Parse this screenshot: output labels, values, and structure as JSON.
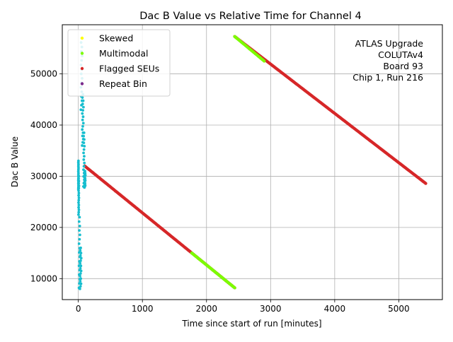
{
  "chart_data": {
    "type": "scatter",
    "title": "Dac B Value vs Relative Time for Channel 4",
    "xlabel": "Time since start of run [minutes]",
    "ylabel": "Dac B Value",
    "xlim": [
      -250,
      5680
    ],
    "ylim": [
      5900,
      59600
    ],
    "xticks": [
      0,
      1000,
      2000,
      3000,
      4000,
      5000
    ],
    "yticks": [
      10000,
      20000,
      30000,
      40000,
      50000
    ],
    "grid": true,
    "legend_position": "top-left",
    "annotation": [
      "ATLAS Upgrade",
      "COLUTAv4",
      "Board 93",
      "Chip 1, Run 216"
    ],
    "series": [
      {
        "name": "Skewed",
        "color": "#ffff00",
        "marker": "dot",
        "points": []
      },
      {
        "name": "Multimodal",
        "color": "#7cfc00",
        "marker": "dot",
        "segments": [
          {
            "x": [
              1770,
              2440
            ],
            "y": [
              15000,
              8200
            ]
          },
          {
            "x": [
              2440,
              2900
            ],
            "y": [
              57300,
              52500
            ]
          }
        ]
      },
      {
        "name": "Flagged SEUs",
        "color": "#d62728",
        "marker": "dot",
        "segments": [
          {
            "x": [
              100,
              2440
            ],
            "y": [
              32000,
              8200
            ]
          },
          {
            "x": [
              2440,
              5420
            ],
            "y": [
              57300,
              28600
            ]
          }
        ]
      },
      {
        "name": "Repeat Bin",
        "color": "#7b2a8c",
        "marker": "dot",
        "points": []
      },
      {
        "name": "",
        "color": "#17becf",
        "marker": "dot",
        "bursts": [
          {
            "x": [
              0,
              3
            ],
            "y": [
              27500,
              33000
            ]
          },
          {
            "x": [
              3,
              10
            ],
            "y": [
              22500,
              30000
            ]
          },
          {
            "x": [
              10,
              25
            ],
            "y": [
              8200,
              22000
            ]
          },
          {
            "x": [
              25,
              45
            ],
            "y": [
              8000,
              16000
            ]
          },
          {
            "x": [
              40,
              60
            ],
            "y": [
              43000,
              57000
            ]
          },
          {
            "x": [
              60,
              80
            ],
            "y": [
              36000,
              46000
            ]
          },
          {
            "x": [
              80,
              95
            ],
            "y": [
              28000,
              38500
            ]
          },
          {
            "x": [
              95,
              110
            ],
            "y": [
              27800,
              31000
            ]
          }
        ]
      }
    ]
  }
}
